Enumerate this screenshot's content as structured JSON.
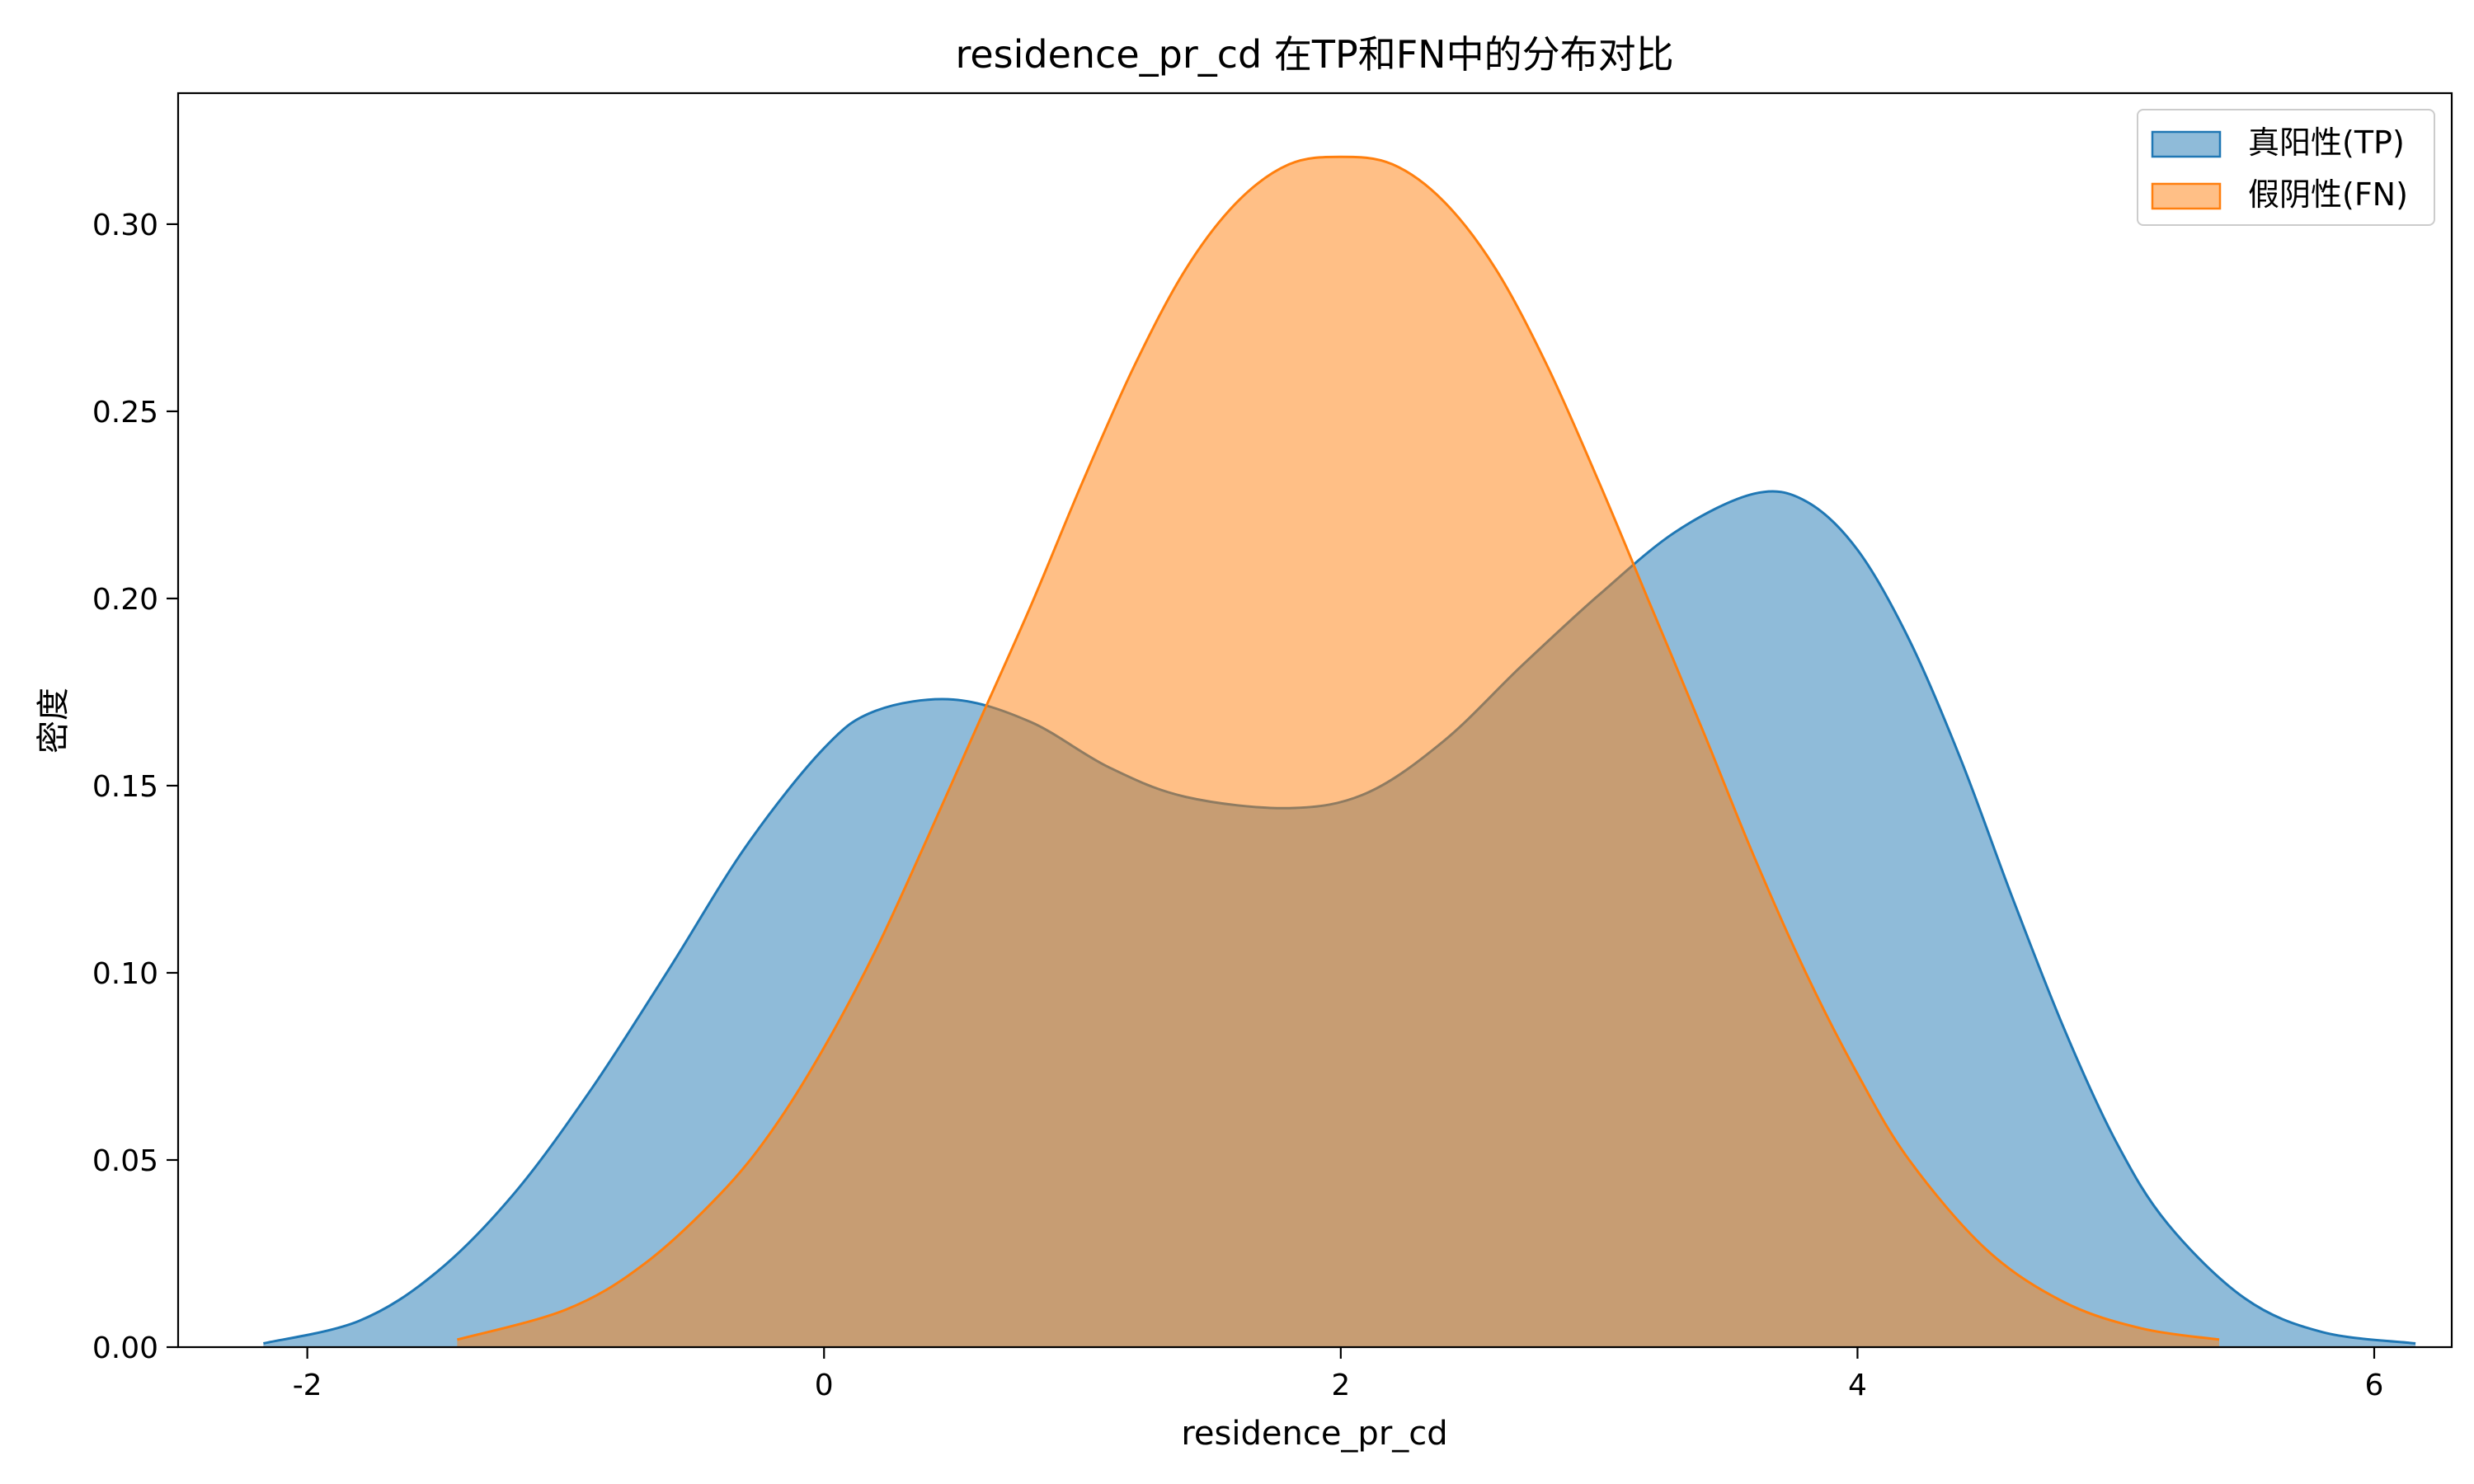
{
  "chart_data": {
    "type": "area",
    "title": "residence_pr_cd 在TP和FN中的分布对比",
    "xlabel": "residence_pr_cd",
    "ylabel": "密度",
    "xlim": [
      -2.5,
      6.3
    ],
    "ylim": [
      0,
      0.335
    ],
    "xticks": [
      -2,
      0,
      2,
      4,
      6
    ],
    "xtick_labels": [
      "-2",
      "0",
      "2",
      "4",
      "6"
    ],
    "yticks": [
      0.0,
      0.05,
      0.1,
      0.15,
      0.2,
      0.25,
      0.3
    ],
    "ytick_labels": [
      "0.00",
      "0.05",
      "0.10",
      "0.15",
      "0.20",
      "0.25",
      "0.30"
    ],
    "grid": false,
    "legend_position": "top-right",
    "series": [
      {
        "name": "真阳性(TP)",
        "color": "#1f77b4",
        "x": [
          -2.17,
          -1.8,
          -1.5,
          -1.2,
          -0.9,
          -0.6,
          -0.3,
          0.0,
          0.2,
          0.5,
          0.8,
          1.1,
          1.4,
          1.8,
          2.1,
          2.4,
          2.7,
          3.0,
          3.3,
          3.6,
          3.8,
          4.0,
          4.2,
          4.4,
          4.6,
          4.8,
          5.0,
          5.2,
          5.5,
          5.8,
          6.16
        ],
        "y": [
          0.001,
          0.007,
          0.02,
          0.041,
          0.069,
          0.101,
          0.134,
          0.16,
          0.17,
          0.173,
          0.167,
          0.155,
          0.147,
          0.144,
          0.148,
          0.162,
          0.182,
          0.201,
          0.218,
          0.228,
          0.226,
          0.213,
          0.189,
          0.157,
          0.12,
          0.085,
          0.055,
          0.033,
          0.013,
          0.004,
          0.001
        ]
      },
      {
        "name": "假阴性(FN)",
        "color": "#ff7f0e",
        "x": [
          -1.42,
          -1.0,
          -0.7,
          -0.4,
          -0.2,
          0.0,
          0.2,
          0.4,
          0.6,
          0.8,
          1.0,
          1.2,
          1.4,
          1.6,
          1.8,
          2.0,
          2.2,
          2.4,
          2.6,
          2.8,
          3.0,
          3.2,
          3.4,
          3.6,
          3.8,
          4.0,
          4.2,
          4.5,
          4.8,
          5.1,
          5.4
        ],
        "y": [
          0.002,
          0.01,
          0.022,
          0.041,
          0.058,
          0.08,
          0.106,
          0.136,
          0.167,
          0.198,
          0.231,
          0.262,
          0.288,
          0.306,
          0.316,
          0.318,
          0.316,
          0.306,
          0.288,
          0.262,
          0.231,
          0.198,
          0.165,
          0.131,
          0.1,
          0.073,
          0.05,
          0.026,
          0.012,
          0.005,
          0.002
        ]
      }
    ]
  }
}
